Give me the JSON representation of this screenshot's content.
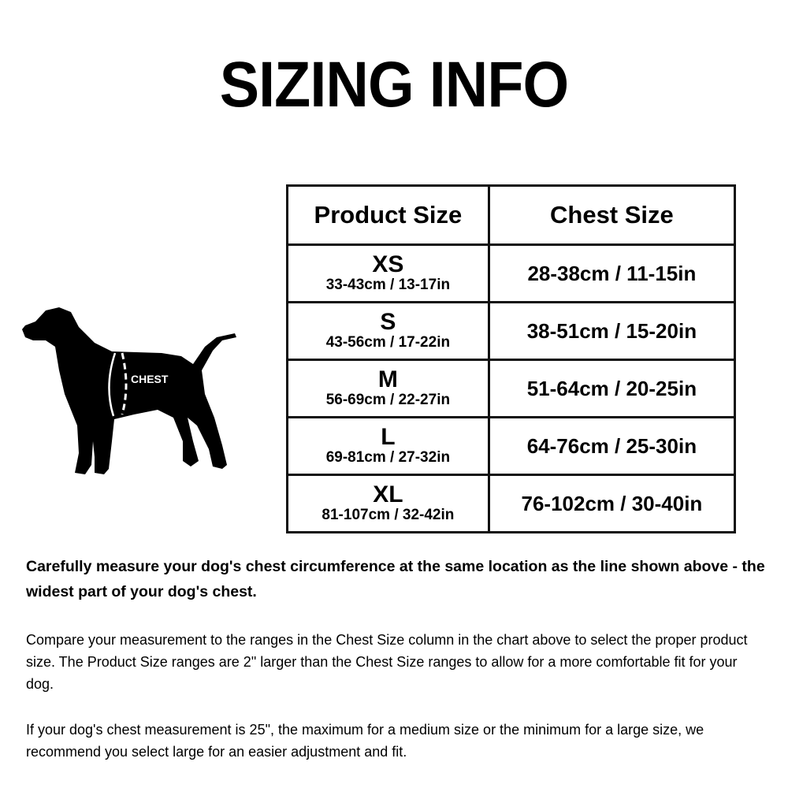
{
  "title": "SIZING INFO",
  "illustration": {
    "label": "CHEST"
  },
  "table": {
    "headers": [
      "Product Size",
      "Chest Size"
    ],
    "rows": [
      {
        "size": "XS",
        "product_range": "33-43cm / 13-17in",
        "chest_range": "28-38cm / 11-15in"
      },
      {
        "size": "S",
        "product_range": "43-56cm / 17-22in",
        "chest_range": "38-51cm / 15-20in"
      },
      {
        "size": "M",
        "product_range": "56-69cm / 22-27in",
        "chest_range": "51-64cm / 20-25in"
      },
      {
        "size": "L",
        "product_range": "69-81cm / 27-32in",
        "chest_range": "64-76cm / 25-30in"
      },
      {
        "size": "XL",
        "product_range": "81-107cm / 32-42in",
        "chest_range": "76-102cm / 30-40in"
      }
    ]
  },
  "note": "Carefully measure your dog's chest circumference at the same location as the line shown above - the widest part of your dog's chest.",
  "paragraph1": "Compare your measurement to the ranges in the Chest Size column in the chart above to select the proper product size.  The Product Size ranges are 2\" larger than the Chest Size ranges to allow for a more comfortable fit for your dog.",
  "paragraph2": "If your dog's chest measurement is 25\", the maximum for a medium size or the minimum for a large size, we recommend you select large for an easier adjustment and fit."
}
